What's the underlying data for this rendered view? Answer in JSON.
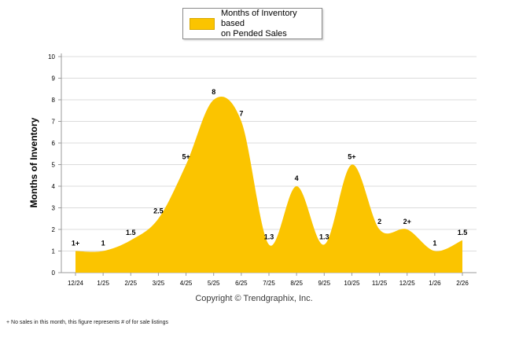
{
  "legend": {
    "line1": "Months of Inventory based",
    "line2": "on Pended Sales"
  },
  "chart_data": {
    "type": "area",
    "title": "",
    "ylabel": "Months of Inventory",
    "categories": [
      "12/24",
      "1/25",
      "2/25",
      "3/25",
      "4/25",
      "5/25",
      "6/25",
      "7/25",
      "8/25",
      "9/25",
      "10/25",
      "11/25",
      "12/25",
      "1/26",
      "2/26"
    ],
    "values": [
      1,
      1,
      1.5,
      2.5,
      5,
      8,
      7,
      1.3,
      4,
      1.3,
      5,
      2,
      2,
      1,
      1.5
    ],
    "point_labels": [
      "1+",
      "1",
      "1.5",
      "2.5",
      "5+",
      "8",
      "7",
      "1.3",
      "4",
      "1.3",
      "5+",
      "2",
      "2+",
      "1",
      "1.5"
    ],
    "ylim": [
      0,
      10
    ],
    "y_ticks": [
      0,
      1,
      2,
      3,
      4,
      5,
      6,
      7,
      8,
      9,
      10
    ],
    "grid": true,
    "legend_position": "top-center",
    "legend_label": "Months of Inventory based on Pended Sales",
    "colors": {
      "fill": "#FBC400",
      "grid": "#DCDCDC",
      "axis": "#9b9b9b",
      "label": "#000000"
    }
  },
  "footer": {
    "copyright": "Copyright © Trendgraphix, Inc."
  },
  "footnote": "+ No sales in this month, this figure represents # of for sale listings"
}
